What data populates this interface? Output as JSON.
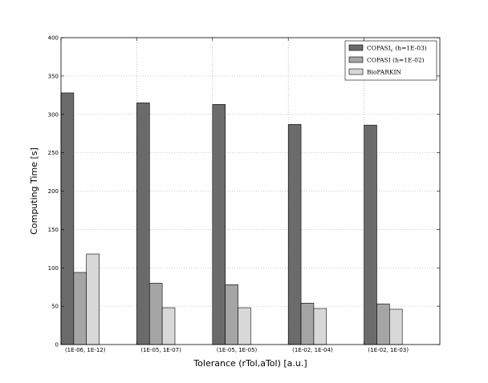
{
  "chart_data": {
    "type": "bar",
    "title": "",
    "xlabel": "Tolerance (rTol,aTol) [a.u.]",
    "ylabel": "Computing Time [s]",
    "ylim": [
      0,
      400
    ],
    "yticks": [
      0,
      50,
      100,
      150,
      200,
      250,
      300,
      350,
      400
    ],
    "grid": true,
    "legend_position": "top-right",
    "categories": [
      "(1E-06, 1E-12)",
      "(1E-05, 1E-07)",
      "(1E-05, 1E-05)",
      "(1E-02, 1E-04)",
      "(1E-02, 1E-03)"
    ],
    "series": [
      {
        "name": "COPASI_c (h=1E-03)",
        "legend_main": "COPASI",
        "legend_sub": "c",
        "legend_param": "(h=1E-03)",
        "color": "#6b6b6b",
        "values": [
          328,
          315,
          313,
          287,
          286
        ]
      },
      {
        "name": "COPASI (h=1E-02)",
        "legend_main": "COPASI",
        "legend_sub": "",
        "legend_param": "(h=1E-02)",
        "color": "#a5a5a5",
        "values": [
          94,
          80,
          78,
          54,
          53
        ]
      },
      {
        "name": "BioPARKIN",
        "legend_main": "BioPARKIN",
        "legend_sub": "",
        "legend_param": "",
        "color": "#d8d8d8",
        "values": [
          118,
          48,
          48,
          47,
          46
        ]
      }
    ]
  }
}
